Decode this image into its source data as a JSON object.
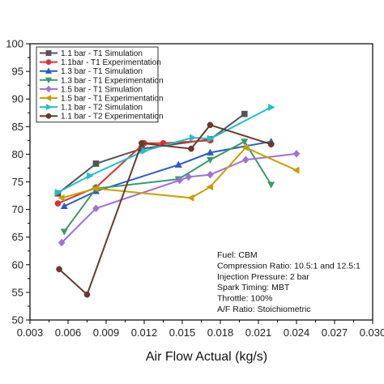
{
  "chart_data": {
    "type": "line",
    "title": "",
    "xlabel": "Air Flow Actual (kg/s)",
    "ylabel": "",
    "xlim": [
      0.003,
      0.03
    ],
    "ylim": [
      50,
      100
    ],
    "x_ticks": [
      "0.003",
      "0.006",
      "0.009",
      "0.012",
      "0.015",
      "0.018",
      "0.021",
      "0.024",
      "0.027",
      "0.030"
    ],
    "x_tick_values": [
      0.003,
      0.006,
      0.009,
      0.012,
      0.015,
      0.018,
      0.021,
      0.024,
      0.027,
      0.03
    ],
    "y_ticks": [
      "50",
      "55",
      "60",
      "65",
      "70",
      "75",
      "80",
      "85",
      "90",
      "95",
      "100"
    ],
    "y_tick_values": [
      50,
      55,
      60,
      65,
      70,
      75,
      80,
      85,
      90,
      95,
      100
    ],
    "grid": false,
    "legend_position": "top-left",
    "series": [
      {
        "name": "1.1 bar - T1 Simulation",
        "color": "#555555",
        "marker": "square",
        "x": [
          0.0052,
          0.0082,
          0.0118,
          0.0172,
          0.0199
        ],
        "y": [
          72.9,
          78.3,
          81.0,
          82.7,
          87.3
        ]
      },
      {
        "name": "1.1bar - T1 Experimentation",
        "color": "#e03030",
        "marker": "circle",
        "x": [
          0.0052,
          0.0082,
          0.012,
          0.0135,
          0.0172
        ],
        "y": [
          71.1,
          74.0,
          82.0,
          82.0,
          82.5
        ]
      },
      {
        "name": "1.3 bar - T1 Simulation",
        "color": "#2a5cc8",
        "marker": "triangle-up",
        "x": [
          0.0057,
          0.0082,
          0.0147,
          0.0172,
          0.022
        ],
        "y": [
          70.6,
          73.3,
          78.1,
          80.3,
          82.3
        ]
      },
      {
        "name": "1.3 bar - T1 Experimentation",
        "color": "#3a9a6a",
        "marker": "triangle-down",
        "x": [
          0.0057,
          0.0082,
          0.0147,
          0.0172,
          0.0199,
          0.022
        ],
        "y": [
          66.0,
          73.8,
          75.5,
          79.0,
          82.3,
          74.5
        ]
      },
      {
        "name": "1.5 bar - T1 Simulation",
        "color": "#a070d8",
        "marker": "diamond",
        "x": [
          0.0055,
          0.0082,
          0.0148,
          0.0155,
          0.0172,
          0.02,
          0.024
        ],
        "y": [
          64.0,
          70.2,
          75.3,
          75.9,
          76.3,
          79.0,
          80.1
        ]
      },
      {
        "name": "1.5 bar - T1 Experimentation",
        "color": "#c8a000",
        "marker": "triangle-left",
        "x": [
          0.0055,
          0.0082,
          0.0157,
          0.0172,
          0.02,
          0.024
        ],
        "y": [
          72.1,
          73.8,
          72.1,
          74.1,
          81.2,
          77.1
        ]
      },
      {
        "name": "1.1 bar - T2 Simulation",
        "color": "#1ec0cc",
        "marker": "triangle-right",
        "x": [
          0.0052,
          0.0077,
          0.012,
          0.0158,
          0.0172,
          0.022
        ],
        "y": [
          73.1,
          76.1,
          80.6,
          83.0,
          82.8,
          88.5
        ]
      },
      {
        "name": "1.1 bar - T2 Experimentation",
        "color": "#6b3a2a",
        "marker": "circle",
        "x": [
          0.0053,
          0.0075,
          0.0118,
          0.0157,
          0.0172,
          0.022
        ],
        "y": [
          59.2,
          54.6,
          82.0,
          81.0,
          85.3,
          81.8
        ]
      }
    ],
    "annotation_lines": [
      "Fuel: CBM",
      "Compression Ratio: 10.5:1 and 12.5:1",
      "Injection Pressure: 2 bar",
      "Spark Timing: MBT",
      "Throttle: 100%",
      "A/F Ratio: Stoichiometric"
    ]
  }
}
